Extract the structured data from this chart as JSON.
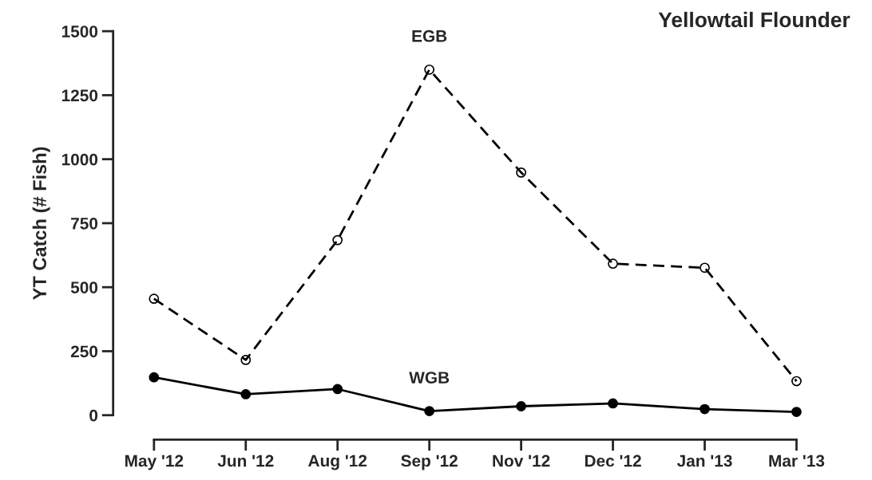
{
  "chart_data": {
    "type": "line",
    "title": "Yellowtail Flounder",
    "ylabel": "YT Catch (# Fish)",
    "categories": [
      "May '12",
      "Jun '12",
      "Aug '12",
      "Sep '12",
      "Nov '12",
      "Dec '12",
      "Jan '13",
      "Mar '13"
    ],
    "series": [
      {
        "name": "EGB",
        "color": "#000000",
        "line_style": "dashed",
        "marker": "circle",
        "values": [
          455,
          216,
          684,
          1350,
          948,
          592,
          576,
          133
        ]
      },
      {
        "name": "WGB",
        "color": "#000000",
        "line_style": "solid",
        "marker": "circle",
        "values": [
          148,
          82,
          102,
          16,
          35,
          46,
          24,
          13
        ]
      }
    ],
    "ylim": [
      0,
      1500
    ],
    "yticks": [
      0,
      250,
      500,
      750,
      1000,
      1250,
      1500
    ],
    "grid": false,
    "legend": false
  }
}
